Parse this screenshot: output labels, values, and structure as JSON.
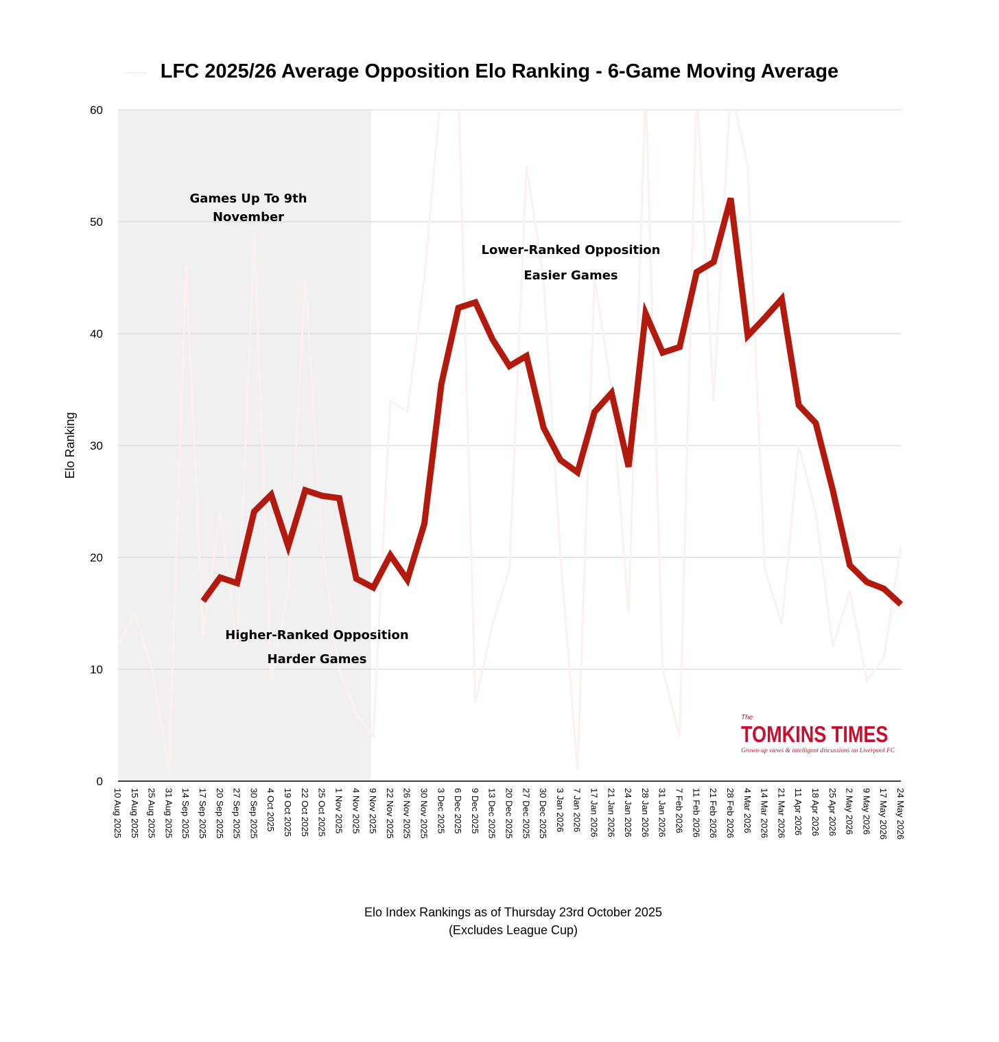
{
  "chart_data": {
    "type": "line",
    "title": "LFC 2025/26 Average Opposition Elo Ranking - 6-Game Moving Average",
    "xlabel": "Elo Index Rankings as of Thursday 23rd October 2025",
    "xlabel_note": "(Excludes League Cup)",
    "ylabel": "Elo Ranking",
    "ylim": [
      0,
      60
    ],
    "yticks": [
      0,
      10,
      20,
      30,
      40,
      50,
      60
    ],
    "grid": true,
    "categories": [
      "10 Aug 2025",
      "15 Aug 2025",
      "25 Aug 2025",
      "31 Aug 2025",
      "14 Sep 2025",
      "17 Sep 2025",
      "20 Sep 2025",
      "27 Sep 2025",
      "30 Sep 2025",
      "4 Oct 2025",
      "19 Oct 2025",
      "22 Oct 2025",
      "25 Oct 2025",
      "1 Nov 2025",
      "4 Nov 2025",
      "9 Nov 2025",
      "22 Nov 2025",
      "26 Nov 2025",
      "30 Nov 2025",
      "3 Dec 2025",
      "6 Dec 2025",
      "9 Dec 2025",
      "13 Dec 2025",
      "20 Dec 2025",
      "27 Dec 2025",
      "30 Dec 2025",
      "3 Jan 2026",
      "7 Jan 2026",
      "17 Jan 2026",
      "21 Jan 2026",
      "24 Jan 2026",
      "28 Jan 2026",
      "31 Jan 2026",
      "7 Feb 2026",
      "11 Feb 2026",
      "21 Feb 2026",
      "28 Feb 2026",
      "4 Mar 2026",
      "14 Mar 2026",
      "21 Mar 2026",
      "11 Apr 2026",
      "18 Apr 2026",
      "25 Apr 2026",
      "2 May 2026",
      "9 May 2026",
      "17 May 2026",
      "24 May 2026"
    ],
    "series": [
      {
        "name": "Opposition Elo Ranking",
        "color": "#fbf1f1",
        "values": [
          12,
          15,
          10,
          1,
          46,
          13,
          24,
          12,
          49,
          9,
          17,
          45,
          21,
          10,
          6,
          4,
          34,
          33,
          45,
          62,
          62,
          7,
          14,
          19,
          55,
          45,
          20,
          1,
          45,
          35,
          15,
          62,
          10,
          4,
          62,
          34,
          62,
          55,
          19,
          14,
          30,
          24,
          12,
          17,
          9,
          11,
          21
        ]
      },
      {
        "name": "6-Game Moving Average",
        "color": "#b31a0e",
        "values": [
          null,
          null,
          null,
          null,
          null,
          16.1,
          18.2,
          17.7,
          24.1,
          25.6,
          21,
          26.0,
          25.5,
          25.3,
          18.1,
          17.3,
          20.2,
          18.0,
          23.0,
          35.5,
          42.3,
          42.8,
          39.5,
          37.1,
          38.0,
          31.6,
          28.7,
          27.6,
          33.0,
          34.7,
          28.1,
          41.8,
          38.3,
          38.8,
          45.5,
          46.4,
          52.1,
          39.8,
          41.4,
          43.1,
          33.6,
          32.0,
          26.0,
          19.3,
          17.8,
          17.2,
          15.8
        ]
      }
    ],
    "shaded_region": {
      "from": "10 Aug 2025",
      "to": "9 Nov 2025",
      "color": "#f0f0f0"
    },
    "annotations": {
      "shaded_label": [
        "Games Up To 9th",
        "November"
      ],
      "lower": [
        "Higher-Ranked Opposition",
        "Harder Games"
      ],
      "upper": [
        "Lower-Ranked Opposition",
        "Easier Games"
      ]
    }
  },
  "logo": {
    "the": "The",
    "name": "TOMKINS TIMES",
    "tagline": "Grown-up views & intelligent discussions on Liverpool FC"
  }
}
